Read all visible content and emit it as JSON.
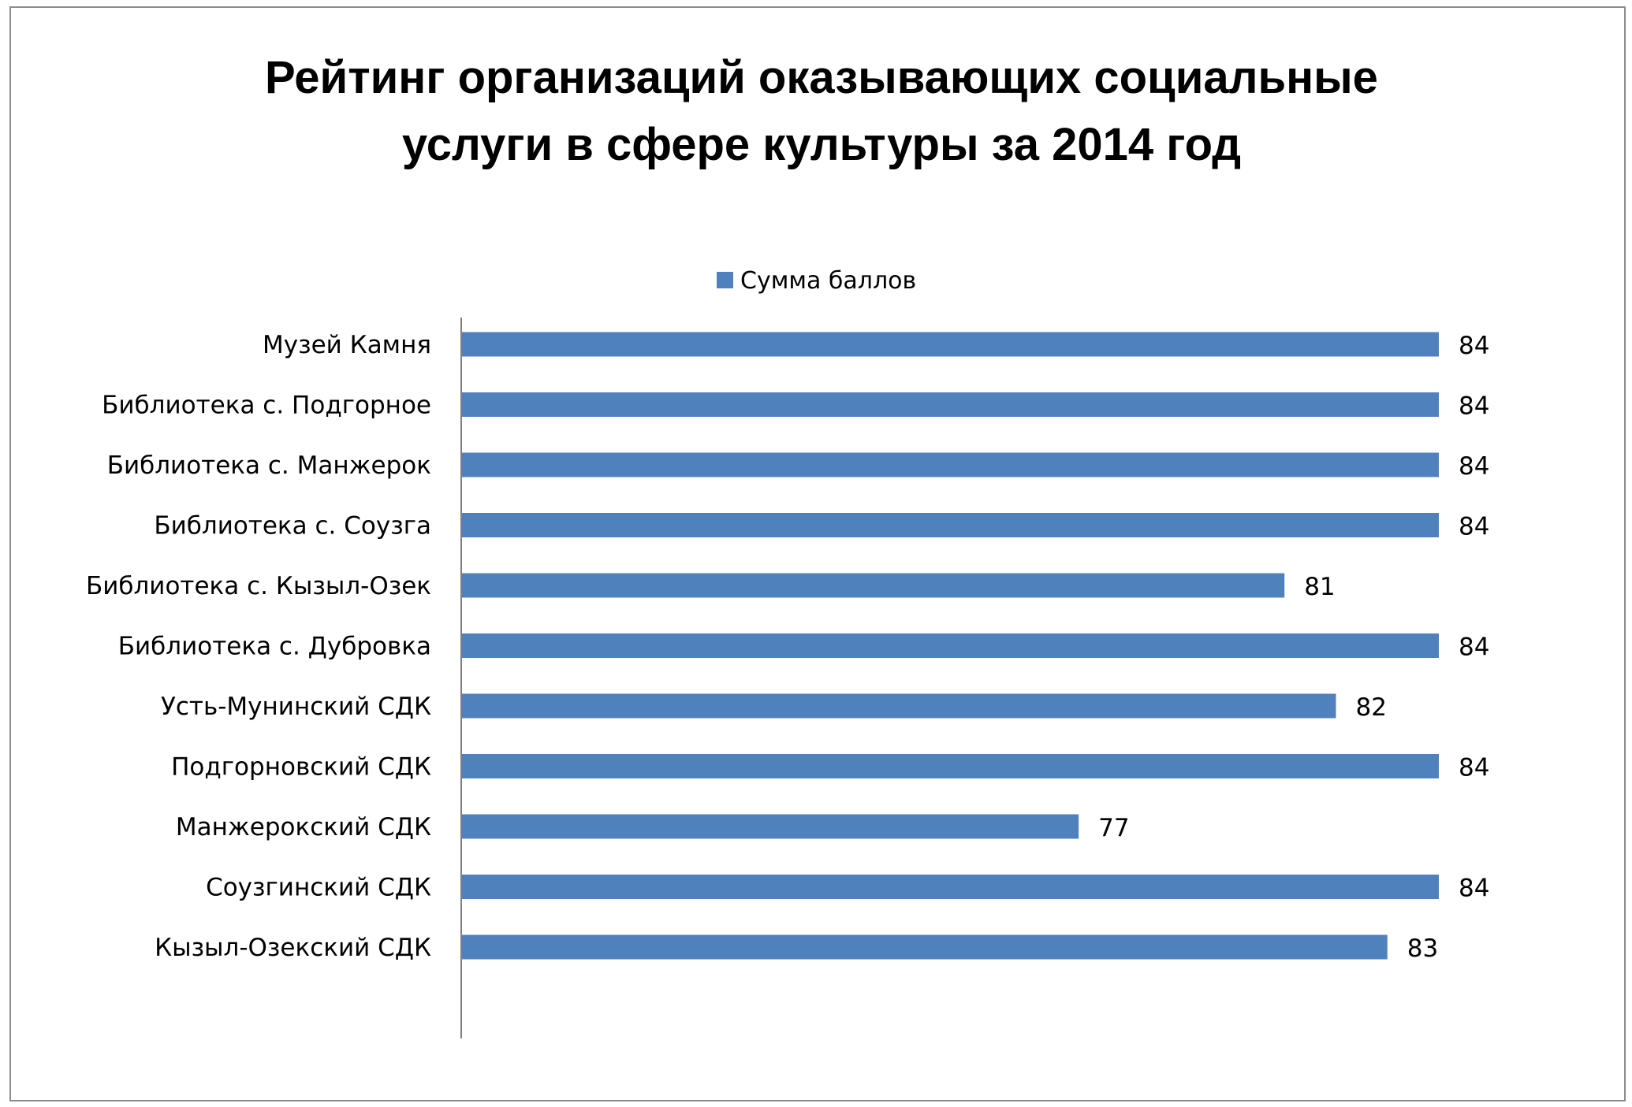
{
  "chart_data": {
    "type": "bar",
    "orientation": "horizontal",
    "title_lines": [
      "Рейтинг организаций  оказывающих социальные",
      "услуги в сфере культуры за 2014 год"
    ],
    "legend": {
      "position": "top",
      "entries": [
        "Сумма баллов"
      ]
    },
    "categories": [
      "Музей Камня",
      "Библиотека с. Подгорное",
      "Библиотека с. Манжерок",
      "Библиотека с. Соузга",
      "Библиотека с. Кызыл-Озек",
      "Библиотека с. Дубровка",
      "Усть-Мунинский СДК",
      "Подгорновский СДК",
      "Манжерокский СДК",
      "Соузгинский СДК",
      "Кызыл-Озекский СДК"
    ],
    "series": [
      {
        "name": "Сумма баллов",
        "color": "#4f81bd",
        "values": [
          84,
          84,
          84,
          84,
          81,
          84,
          82,
          84,
          77,
          84,
          83
        ]
      }
    ],
    "xlim": [
      65,
      84
    ],
    "data_labels": true,
    "grid": false,
    "axis_line_color": "#7f7f7f"
  }
}
